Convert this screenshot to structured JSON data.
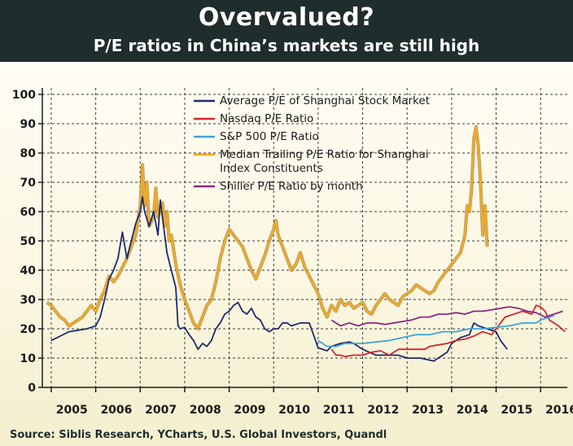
{
  "header": {
    "title": "Overvalued?",
    "subtitle": "P/E ratios in China’s markets are still high"
  },
  "source": "Source: Siblis Research, YCharts, U.S. Global Investors, Quandl",
  "chart_data": {
    "type": "line",
    "title": "Overvalued?",
    "subtitle": "P/E ratios in China’s markets are still high",
    "xlabel": "",
    "ylabel": "",
    "xlim": [
      2004.8,
      2016.6
    ],
    "ylim": [
      0,
      100
    ],
    "x_ticks": [
      "2005",
      "2006",
      "2007",
      "2008",
      "2009",
      "2010",
      "2011",
      "2012",
      "2013",
      "2014",
      "2015",
      "2016"
    ],
    "y_ticks": [
      "0",
      "10",
      "20",
      "30",
      "40",
      "50",
      "60",
      "70",
      "80",
      "90",
      "100"
    ],
    "grid": true,
    "legend": "top-center",
    "series": [
      {
        "name": "Average P/E of Shanghai Stock Market",
        "color": "#1f2a6e",
        "points": [
          [
            2005.0,
            16
          ],
          [
            2005.2,
            17.5
          ],
          [
            2005.4,
            19
          ],
          [
            2005.6,
            19.5
          ],
          [
            2005.8,
            20
          ],
          [
            2006.0,
            21
          ],
          [
            2006.1,
            24
          ],
          [
            2006.2,
            30
          ],
          [
            2006.3,
            37
          ],
          [
            2006.4,
            40
          ],
          [
            2006.5,
            44
          ],
          [
            2006.6,
            53
          ],
          [
            2006.7,
            44
          ],
          [
            2006.8,
            50
          ],
          [
            2006.9,
            56
          ],
          [
            2007.0,
            60
          ],
          [
            2007.05,
            65
          ],
          [
            2007.1,
            60
          ],
          [
            2007.2,
            55
          ],
          [
            2007.3,
            60
          ],
          [
            2007.4,
            52
          ],
          [
            2007.45,
            64
          ],
          [
            2007.5,
            58
          ],
          [
            2007.6,
            46
          ],
          [
            2007.7,
            40
          ],
          [
            2007.8,
            34
          ],
          [
            2007.85,
            21
          ],
          [
            2007.9,
            20
          ],
          [
            2008.0,
            20.5
          ],
          [
            2008.1,
            18
          ],
          [
            2008.2,
            16
          ],
          [
            2008.3,
            13
          ],
          [
            2008.4,
            15
          ],
          [
            2008.5,
            14
          ],
          [
            2008.6,
            16
          ],
          [
            2008.7,
            20
          ],
          [
            2008.8,
            22
          ],
          [
            2008.9,
            25
          ],
          [
            2009.0,
            26
          ],
          [
            2009.1,
            28
          ],
          [
            2009.2,
            29
          ],
          [
            2009.3,
            26
          ],
          [
            2009.4,
            25
          ],
          [
            2009.5,
            27
          ],
          [
            2009.6,
            24
          ],
          [
            2009.7,
            23
          ],
          [
            2009.8,
            20
          ],
          [
            2009.9,
            19
          ],
          [
            2010.0,
            20
          ],
          [
            2010.1,
            20
          ],
          [
            2010.2,
            22
          ],
          [
            2010.3,
            22
          ],
          [
            2010.4,
            21
          ],
          [
            2010.6,
            22
          ],
          [
            2010.8,
            22
          ],
          [
            2011.0,
            13.5
          ],
          [
            2011.2,
            12.5
          ],
          [
            2011.3,
            14
          ],
          [
            2011.5,
            15
          ],
          [
            2011.7,
            15.5
          ],
          [
            2011.8,
            15
          ],
          [
            2012.0,
            13
          ],
          [
            2012.3,
            11
          ],
          [
            2012.6,
            11
          ],
          [
            2012.8,
            11
          ],
          [
            2013.0,
            10
          ],
          [
            2013.3,
            10
          ],
          [
            2013.6,
            9
          ],
          [
            2013.9,
            12
          ],
          [
            2014.0,
            15
          ],
          [
            2014.2,
            17
          ],
          [
            2014.4,
            18
          ],
          [
            2014.5,
            22
          ],
          [
            2014.6,
            21
          ],
          [
            2014.8,
            20
          ],
          [
            2015.0,
            19
          ],
          [
            2015.1,
            16
          ],
          [
            2015.2,
            14
          ],
          [
            2015.25,
            13
          ]
        ]
      },
      {
        "name": "Nasdaq P/E Ratio",
        "color": "#d5262e",
        "points": [
          [
            2011.3,
            13
          ],
          [
            2011.4,
            11
          ],
          [
            2011.5,
            11
          ],
          [
            2011.6,
            10.5
          ],
          [
            2011.8,
            11
          ],
          [
            2012.0,
            11
          ],
          [
            2012.2,
            12
          ],
          [
            2012.4,
            12.5
          ],
          [
            2012.6,
            11
          ],
          [
            2012.8,
            13
          ],
          [
            2013.0,
            13
          ],
          [
            2013.2,
            13
          ],
          [
            2013.4,
            13
          ],
          [
            2013.5,
            14
          ],
          [
            2013.7,
            14.5
          ],
          [
            2013.9,
            15
          ],
          [
            2014.1,
            16
          ],
          [
            2014.3,
            16.5
          ],
          [
            2014.5,
            17.5
          ],
          [
            2014.7,
            19
          ],
          [
            2014.9,
            18
          ],
          [
            2015.0,
            20
          ],
          [
            2015.1,
            22
          ],
          [
            2015.2,
            24
          ],
          [
            2015.4,
            25
          ],
          [
            2015.6,
            26
          ],
          [
            2015.8,
            25
          ],
          [
            2015.9,
            28
          ],
          [
            2016.0,
            27.5
          ],
          [
            2016.1,
            26
          ],
          [
            2016.2,
            23
          ],
          [
            2016.4,
            21
          ],
          [
            2016.55,
            19
          ]
        ]
      },
      {
        "name": "S&P 500 P/E Ratio",
        "color": "#3fa4d6",
        "points": [
          [
            2011.0,
            16
          ],
          [
            2011.2,
            14
          ],
          [
            2011.4,
            14
          ],
          [
            2011.6,
            15
          ],
          [
            2011.8,
            15
          ],
          [
            2012.0,
            15
          ],
          [
            2012.3,
            15.5
          ],
          [
            2012.6,
            16
          ],
          [
            2012.9,
            17
          ],
          [
            2013.2,
            18
          ],
          [
            2013.5,
            18
          ],
          [
            2013.8,
            19
          ],
          [
            2014.1,
            19
          ],
          [
            2014.4,
            20
          ],
          [
            2014.7,
            20
          ],
          [
            2015.0,
            20.5
          ],
          [
            2015.3,
            21
          ],
          [
            2015.6,
            22
          ],
          [
            2015.9,
            22
          ],
          [
            2016.0,
            23
          ],
          [
            2016.1,
            23.5
          ],
          [
            2016.3,
            24.5
          ]
        ]
      },
      {
        "name": "Median Trailing P/E Ratio for Shanghai Index Constituents",
        "color": "#f2aa22",
        "points": [
          [
            2004.9,
            29
          ],
          [
            2005.0,
            28
          ],
          [
            2005.1,
            26
          ],
          [
            2005.2,
            24
          ],
          [
            2005.3,
            23
          ],
          [
            2005.4,
            21
          ],
          [
            2005.5,
            22
          ],
          [
            2005.6,
            23
          ],
          [
            2005.7,
            24
          ],
          [
            2005.8,
            26
          ],
          [
            2005.9,
            28
          ],
          [
            2006.0,
            26
          ],
          [
            2006.1,
            30
          ],
          [
            2006.2,
            33
          ],
          [
            2006.3,
            38
          ],
          [
            2006.4,
            36
          ],
          [
            2006.5,
            38
          ],
          [
            2006.6,
            41
          ],
          [
            2006.7,
            44
          ],
          [
            2006.8,
            48
          ],
          [
            2006.9,
            52
          ],
          [
            2007.0,
            62
          ],
          [
            2007.05,
            76
          ],
          [
            2007.1,
            62
          ],
          [
            2007.15,
            70
          ],
          [
            2007.2,
            55
          ],
          [
            2007.3,
            58
          ],
          [
            2007.35,
            68
          ],
          [
            2007.4,
            58
          ],
          [
            2007.5,
            63
          ],
          [
            2007.55,
            55
          ],
          [
            2007.6,
            60
          ],
          [
            2007.65,
            50
          ],
          [
            2007.7,
            52
          ],
          [
            2007.8,
            42
          ],
          [
            2007.9,
            35
          ],
          [
            2008.0,
            30
          ],
          [
            2008.1,
            26
          ],
          [
            2008.2,
            22
          ],
          [
            2008.3,
            20
          ],
          [
            2008.4,
            24
          ],
          [
            2008.5,
            28
          ],
          [
            2008.6,
            30
          ],
          [
            2008.7,
            36
          ],
          [
            2008.8,
            44
          ],
          [
            2008.9,
            50
          ],
          [
            2009.0,
            54
          ],
          [
            2009.1,
            52
          ],
          [
            2009.2,
            50
          ],
          [
            2009.3,
            48
          ],
          [
            2009.4,
            44
          ],
          [
            2009.5,
            40
          ],
          [
            2009.6,
            37
          ],
          [
            2009.7,
            41
          ],
          [
            2009.8,
            45
          ],
          [
            2009.9,
            50
          ],
          [
            2010.0,
            54
          ],
          [
            2010.05,
            57
          ],
          [
            2010.1,
            52
          ],
          [
            2010.2,
            48
          ],
          [
            2010.3,
            44
          ],
          [
            2010.4,
            40
          ],
          [
            2010.5,
            42
          ],
          [
            2010.6,
            46
          ],
          [
            2010.7,
            41
          ],
          [
            2010.8,
            38
          ],
          [
            2010.9,
            35
          ],
          [
            2011.0,
            32
          ],
          [
            2011.1,
            27
          ],
          [
            2011.2,
            24
          ],
          [
            2011.3,
            28
          ],
          [
            2011.4,
            26
          ],
          [
            2011.5,
            30
          ],
          [
            2011.6,
            28
          ],
          [
            2011.7,
            29
          ],
          [
            2011.8,
            27
          ],
          [
            2011.9,
            28
          ],
          [
            2012.0,
            29
          ],
          [
            2012.1,
            26
          ],
          [
            2012.2,
            25
          ],
          [
            2012.3,
            28
          ],
          [
            2012.4,
            30
          ],
          [
            2012.5,
            32
          ],
          [
            2012.6,
            30
          ],
          [
            2012.7,
            29
          ],
          [
            2012.8,
            28
          ],
          [
            2012.9,
            31
          ],
          [
            2013.0,
            32
          ],
          [
            2013.1,
            33
          ],
          [
            2013.2,
            35
          ],
          [
            2013.3,
            34
          ],
          [
            2013.4,
            33
          ],
          [
            2013.5,
            32
          ],
          [
            2013.6,
            33
          ],
          [
            2013.7,
            36
          ],
          [
            2013.8,
            38
          ],
          [
            2013.9,
            40
          ],
          [
            2014.0,
            42
          ],
          [
            2014.1,
            44
          ],
          [
            2014.2,
            46
          ],
          [
            2014.3,
            52
          ],
          [
            2014.35,
            62
          ],
          [
            2014.4,
            60
          ],
          [
            2014.45,
            68
          ],
          [
            2014.5,
            85
          ],
          [
            2014.55,
            89
          ],
          [
            2014.6,
            82
          ],
          [
            2014.65,
            70
          ],
          [
            2014.7,
            52
          ],
          [
            2014.75,
            62
          ],
          [
            2014.8,
            48
          ]
        ]
      },
      {
        "name": "Shiller P/E Ratio by month",
        "color": "#8b2a82",
        "points": [
          [
            2011.3,
            23
          ],
          [
            2011.5,
            21
          ],
          [
            2011.7,
            22
          ],
          [
            2011.9,
            21
          ],
          [
            2012.1,
            22
          ],
          [
            2012.3,
            22
          ],
          [
            2012.5,
            21.5
          ],
          [
            2012.7,
            22
          ],
          [
            2012.9,
            22.5
          ],
          [
            2013.1,
            23
          ],
          [
            2013.3,
            24
          ],
          [
            2013.5,
            24
          ],
          [
            2013.7,
            25
          ],
          [
            2013.9,
            25
          ],
          [
            2014.1,
            25.5
          ],
          [
            2014.3,
            25
          ],
          [
            2014.5,
            26
          ],
          [
            2014.7,
            26
          ],
          [
            2014.9,
            26.5
          ],
          [
            2015.1,
            27
          ],
          [
            2015.3,
            27.5
          ],
          [
            2015.5,
            27
          ],
          [
            2015.7,
            26
          ],
          [
            2015.9,
            25.5
          ],
          [
            2016.1,
            24
          ],
          [
            2016.3,
            25
          ],
          [
            2016.5,
            26
          ]
        ]
      }
    ]
  }
}
